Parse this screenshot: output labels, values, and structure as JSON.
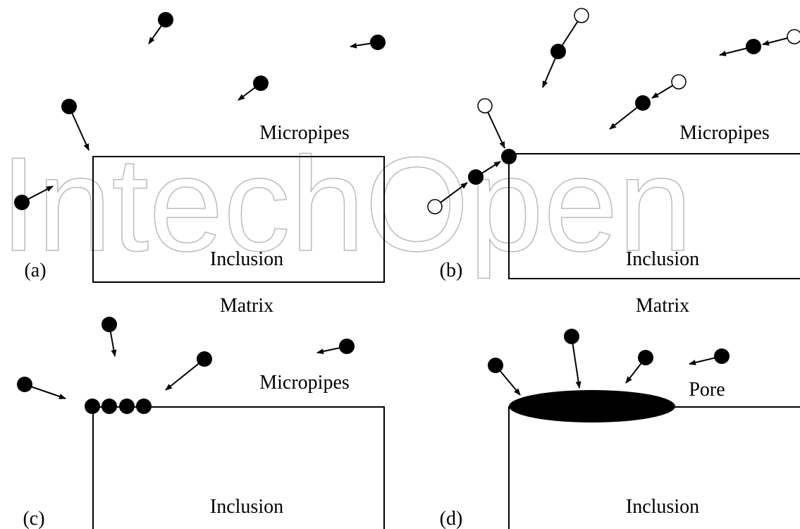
{
  "watermark": "IntechOpen",
  "panels": [
    {
      "label": "(a)",
      "micropipes": "Micropipes",
      "inclusion": "Inclusion",
      "matrix": "Matrix"
    },
    {
      "label": "(b)",
      "micropipes": "Micropipes",
      "inclusion": "Inclusion",
      "matrix": "Matrix"
    },
    {
      "label": "(c)",
      "micropipes": "Micropipes",
      "inclusion": "Inclusion"
    },
    {
      "label": "(d)",
      "pore": "Pore",
      "inclusion": "Inclusion"
    }
  ]
}
